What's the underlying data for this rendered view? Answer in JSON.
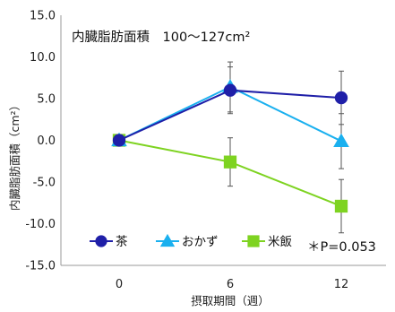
{
  "chart_data": {
    "type": "line",
    "title": "",
    "x": [
      "0",
      "6",
      "12"
    ],
    "xlabel": "摂取期間（週）",
    "ylabel": "内臓脂肪面積（cm²）",
    "ylim": [
      -15,
      15
    ],
    "yticks": [
      "15.0",
      "10.0",
      "5.0",
      "0.0",
      "-5.0",
      "-10.0",
      "-15.0"
    ],
    "grid": false,
    "legend_position": "bottom-left",
    "annotation": "内臓脂肪面積　100〜127cm²",
    "significance_note": "＊P=0.053",
    "series": [
      {
        "name": "茶",
        "marker": "circle",
        "color": "#1f1fa8",
        "values": [
          0,
          6.0,
          5.1
        ],
        "error": [
          0,
          2.8,
          3.2
        ]
      },
      {
        "name": "おかず",
        "marker": "triangle",
        "color": "#1ab0ef",
        "values": [
          0,
          6.4,
          -0.1
        ],
        "error": [
          0,
          3.0,
          3.3
        ]
      },
      {
        "name": "米飯",
        "marker": "square",
        "color": "#7ed321",
        "values": [
          0,
          -2.6,
          -7.9
        ],
        "error": [
          0,
          2.9,
          3.2
        ]
      }
    ]
  }
}
